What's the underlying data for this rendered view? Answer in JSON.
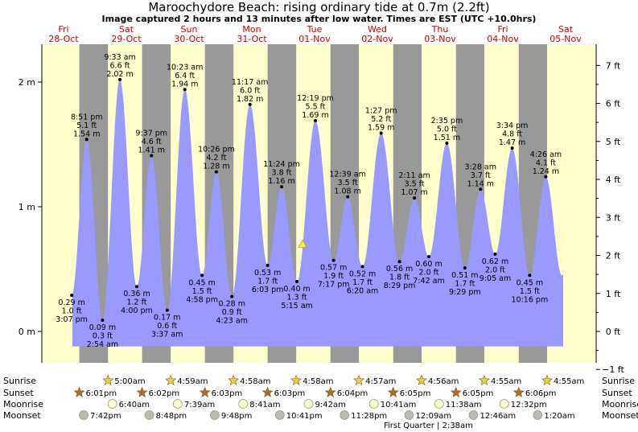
{
  "header": {
    "title": "Maroochydore Beach: rising  ordinary tide at 0.7m (2.2ft)",
    "subtitle": "Image captured 2 hours and 13 minutes after low water. Times are EST (UTC +10.0hrs)"
  },
  "colors": {
    "day_band": "#ffffcc",
    "night_band": "#999999",
    "tide_fill": "#9999ff",
    "day_label": "#cc0000",
    "sun_star": "#e8d23a",
    "sunset_star": "#b06a30",
    "moonrise_disc": "#ffffcc",
    "moonset_disc": "#bbbbaa",
    "now_marker": "#ffee44"
  },
  "days": [
    {
      "dow": "Fri",
      "date": "28-Oct"
    },
    {
      "dow": "Sat",
      "date": "29-Oct"
    },
    {
      "dow": "Sun",
      "date": "30-Oct"
    },
    {
      "dow": "Mon",
      "date": "31-Oct"
    },
    {
      "dow": "Tue",
      "date": "01-Nov"
    },
    {
      "dow": "Wed",
      "date": "02-Nov"
    },
    {
      "dow": "Thu",
      "date": "03-Nov"
    },
    {
      "dow": "Fri",
      "date": "04-Nov"
    },
    {
      "dow": "Sat",
      "date": "05-Nov"
    }
  ],
  "axes": {
    "left_ticks": [
      "0 m",
      "1 m",
      "2 m"
    ],
    "right_ticks": [
      "−1 ft",
      "0 ft",
      "1 ft",
      "2 ft",
      "3 ft",
      "4 ft",
      "5 ft",
      "6 ft",
      "7 ft"
    ]
  },
  "rows": {
    "sunrise_label": "Sunrise",
    "sunset_label": "Sunset",
    "moonrise_label": "Moonrise",
    "moonset_label": "Moonset",
    "sunrise": [
      "5:00am",
      "4:59am",
      "4:58am",
      "4:58am",
      "4:57am",
      "4:56am",
      "4:55am",
      "4:55am"
    ],
    "sunset": [
      "6:01pm",
      "6:02pm",
      "6:03pm",
      "6:03pm",
      "6:04pm",
      "6:05pm",
      "6:05pm",
      "6:06pm"
    ],
    "moonrise": [
      "6:40am",
      "7:39am",
      "8:41am",
      "9:42am",
      "10:41am",
      "11:38am",
      "12:32pm"
    ],
    "moonset": [
      "7:42pm",
      "8:48pm",
      "9:48pm",
      "10:41pm",
      "11:28pm",
      "12:09am",
      "12:46am",
      "1:20am"
    ],
    "moon_phase": "First Quarter | 2:38am"
  },
  "chart_data": {
    "type": "area",
    "title": "Maroochydore Beach: rising  ordinary tide at 0.7m (2.2ft)",
    "current": {
      "height_m": 0.7,
      "height_ft": 2.2,
      "date": "01-Nov",
      "time": "7:27 am"
    },
    "ylim_m": [
      -0.3,
      2.2
    ],
    "extremes": [
      {
        "date": "28-Oct",
        "time": "3:07 pm",
        "m": "0.29 m",
        "ft": "1.0 ft",
        "value": 0.29,
        "type": "low"
      },
      {
        "date": "28-Oct",
        "time": "8:51 pm",
        "m": "1.54 m",
        "ft": "5.1 ft",
        "value": 1.54,
        "type": "high"
      },
      {
        "date": "29-Oct",
        "time": "2:54 am",
        "m": "0.09 m",
        "ft": "0.3 ft",
        "value": 0.09,
        "type": "low"
      },
      {
        "date": "29-Oct",
        "time": "9:33 am",
        "m": "2.02 m",
        "ft": "6.6 ft",
        "value": 2.02,
        "type": "high"
      },
      {
        "date": "29-Oct",
        "time": "4:00 pm",
        "m": "0.36 m",
        "ft": "1.2 ft",
        "value": 0.36,
        "type": "low"
      },
      {
        "date": "29-Oct",
        "time": "9:37 pm",
        "m": "1.41 m",
        "ft": "4.6 ft",
        "value": 1.41,
        "type": "high"
      },
      {
        "date": "30-Oct",
        "time": "3:37 am",
        "m": "0.17 m",
        "ft": "0.6 ft",
        "value": 0.17,
        "type": "low"
      },
      {
        "date": "30-Oct",
        "time": "10:23 am",
        "m": "1.94 m",
        "ft": "6.4 ft",
        "value": 1.94,
        "type": "high"
      },
      {
        "date": "30-Oct",
        "time": "4:58 pm",
        "m": "0.45 m",
        "ft": "1.5 ft",
        "value": 0.45,
        "type": "low"
      },
      {
        "date": "30-Oct",
        "time": "10:26 pm",
        "m": "1.28 m",
        "ft": "4.2 ft",
        "value": 1.28,
        "type": "high"
      },
      {
        "date": "31-Oct",
        "time": "4:23 am",
        "m": "0.28 m",
        "ft": "0.9 ft",
        "value": 0.28,
        "type": "low"
      },
      {
        "date": "31-Oct",
        "time": "11:17 am",
        "m": "1.82 m",
        "ft": "6.0 ft",
        "value": 1.82,
        "type": "high"
      },
      {
        "date": "31-Oct",
        "time": "6:03 pm",
        "m": "0.53 m",
        "ft": "1.7 ft",
        "value": 0.53,
        "type": "low"
      },
      {
        "date": "31-Oct",
        "time": "11:24 pm",
        "m": "1.16 m",
        "ft": "3.8 ft",
        "value": 1.16,
        "type": "high"
      },
      {
        "date": "01-Nov",
        "time": "5:15 am",
        "m": "0.40 m",
        "ft": "1.3 ft",
        "value": 0.4,
        "type": "low"
      },
      {
        "date": "01-Nov",
        "time": "12:19 pm",
        "m": "1.69 m",
        "ft": "5.5 ft",
        "value": 1.69,
        "type": "high"
      },
      {
        "date": "01-Nov",
        "time": "7:17 pm",
        "m": "0.57 m",
        "ft": "1.9 ft",
        "value": 0.57,
        "type": "low"
      },
      {
        "date": "02-Nov",
        "time": "12:39 am",
        "m": "1.08 m",
        "ft": "3.5 ft",
        "value": 1.08,
        "type": "high"
      },
      {
        "date": "02-Nov",
        "time": "6:20 am",
        "m": "0.52 m",
        "ft": "1.7 ft",
        "value": 0.52,
        "type": "low"
      },
      {
        "date": "02-Nov",
        "time": "1:27 pm",
        "m": "1.59 m",
        "ft": "5.2 ft",
        "value": 1.59,
        "type": "high"
      },
      {
        "date": "02-Nov",
        "time": "8:29 pm",
        "m": "0.56 m",
        "ft": "1.8 ft",
        "value": 0.56,
        "type": "low"
      },
      {
        "date": "03-Nov",
        "time": "2:11 am",
        "m": "1.07 m",
        "ft": "3.5 ft",
        "value": 1.07,
        "type": "high"
      },
      {
        "date": "03-Nov",
        "time": "7:42 am",
        "m": "0.60 m",
        "ft": "2.0 ft",
        "value": 0.6,
        "type": "low"
      },
      {
        "date": "03-Nov",
        "time": "2:35 pm",
        "m": "1.51 m",
        "ft": "5.0 ft",
        "value": 1.51,
        "type": "high"
      },
      {
        "date": "03-Nov",
        "time": "9:29 pm",
        "m": "0.51 m",
        "ft": "1.7 ft",
        "value": 0.51,
        "type": "low"
      },
      {
        "date": "04-Nov",
        "time": "3:28 am",
        "m": "1.14 m",
        "ft": "3.7 ft",
        "value": 1.14,
        "type": "high"
      },
      {
        "date": "04-Nov",
        "time": "9:05 am",
        "m": "0.62 m",
        "ft": "2.0 ft",
        "value": 0.62,
        "type": "low"
      },
      {
        "date": "04-Nov",
        "time": "3:34 pm",
        "m": "1.47 m",
        "ft": "4.8 ft",
        "value": 1.47,
        "type": "high"
      },
      {
        "date": "04-Nov",
        "time": "10:16 pm",
        "m": "0.45 m",
        "ft": "1.5 ft",
        "value": 0.45,
        "type": "low"
      },
      {
        "date": "05-Nov",
        "time": "4:26 am",
        "m": "1.24 m",
        "ft": "4.1 ft",
        "value": 1.24,
        "type": "high"
      }
    ]
  }
}
